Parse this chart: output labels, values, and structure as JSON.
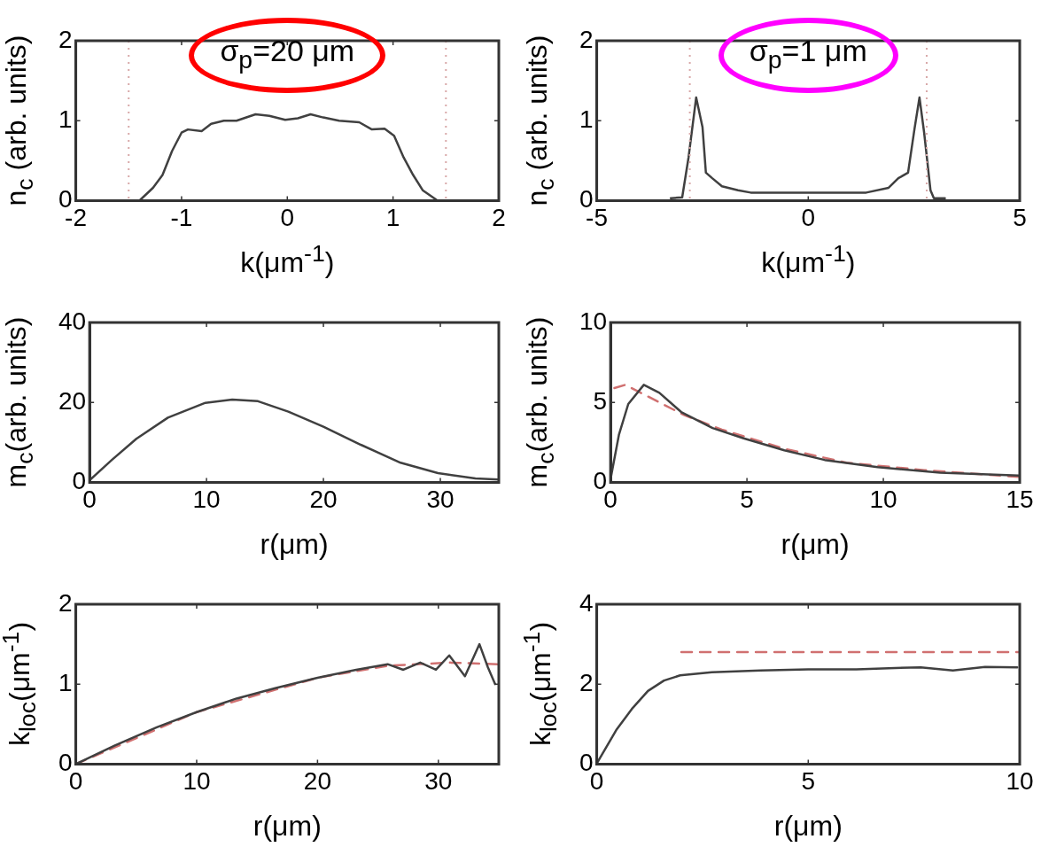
{
  "chart_data": [
    {
      "type": "line",
      "xlabel": "k(μm$^{-1}$)",
      "ylabel": "n$_{c}$ (arb. units)",
      "annotations": [
        "σ$_{p}$=20 μm"
      ],
      "marker": "none",
      "grid": false,
      "legend": false,
      "xlim": [
        -2,
        2
      ],
      "xticks": [
        -2,
        -1,
        0,
        1,
        2
      ],
      "ylim": [
        0,
        2
      ],
      "yticks": [
        0,
        1,
        2
      ],
      "ref_lines": [
        {
          "axis": "x",
          "value": -1.5,
          "color": "#d8a8a8",
          "line_style": "dotted"
        },
        {
          "axis": "x",
          "value": 1.5,
          "color": "#d8a8a8",
          "line_style": "dotted"
        }
      ],
      "series": [
        {
          "color": "#404040",
          "x": [
            -1.39,
            -1.27,
            -1.18,
            -1.09,
            -1.0,
            -0.94,
            -0.81,
            -0.72,
            -0.6,
            -0.48,
            -0.3,
            -0.17,
            -0.02,
            0.1,
            0.22,
            0.34,
            0.49,
            0.68,
            0.8,
            0.92,
            1.01,
            1.1,
            1.19,
            1.28,
            1.41
          ],
          "values": [
            0.01,
            0.16,
            0.32,
            0.62,
            0.85,
            0.89,
            0.87,
            0.96,
            1.0,
            1.0,
            1.08,
            1.06,
            1.01,
            1.03,
            1.08,
            1.04,
            1.0,
            0.98,
            0.89,
            0.9,
            0.81,
            0.54,
            0.32,
            0.13,
            0.01
          ]
        }
      ]
    },
    {
      "type": "line",
      "xlabel": "k(μm$^{-1}$)",
      "ylabel": "n$_{c}$ (arb. units)",
      "annotations": [
        "σ$_{p}$=1 μm"
      ],
      "marker": "none",
      "grid": false,
      "legend": false,
      "xlim": [
        -5,
        5
      ],
      "xticks": [
        -5,
        0,
        5
      ],
      "ylim": [
        0,
        2
      ],
      "yticks": [
        0,
        1,
        2
      ],
      "ref_lines": [
        {
          "axis": "x",
          "value": -2.8,
          "color": "#d8a8a8",
          "line_style": "dotted"
        },
        {
          "axis": "x",
          "value": 2.8,
          "color": "#d8a8a8",
          "line_style": "dotted"
        }
      ],
      "series": [
        {
          "color": "#404040",
          "x": [
            -3.25,
            -2.98,
            -2.83,
            -2.65,
            -2.5,
            -2.42,
            -2.27,
            -2.04,
            -1.66,
            -1.36,
            0,
            1.37,
            1.9,
            2.13,
            2.36,
            2.51,
            2.63,
            2.74,
            2.89,
            2.97,
            3.23
          ],
          "values": [
            0.03,
            0.04,
            0.54,
            1.29,
            0.92,
            0.35,
            0.28,
            0.18,
            0.13,
            0.1,
            0.1,
            0.1,
            0.16,
            0.28,
            0.35,
            0.89,
            1.29,
            0.85,
            0.13,
            0.03,
            0.03
          ]
        }
      ]
    },
    {
      "type": "line",
      "xlabel": "r(μm)",
      "ylabel": "m$_{c}$(arb. units)",
      "marker": "none",
      "grid": false,
      "legend": false,
      "xlim": [
        0,
        35
      ],
      "xticks": [
        0,
        10,
        20,
        30
      ],
      "ylim": [
        0,
        40
      ],
      "yticks": [
        0,
        20,
        40
      ],
      "series": [
        {
          "color": "#404040",
          "x": [
            0,
            1.9,
            4,
            6.7,
            9.9,
            12.2,
            14.4,
            17,
            20,
            23.2,
            26.6,
            29.8,
            33,
            35
          ],
          "values": [
            0.5,
            5.6,
            10.9,
            16.2,
            19.9,
            20.7,
            20.3,
            17.7,
            13.9,
            9.4,
            4.9,
            2.3,
            1,
            0.7
          ]
        }
      ]
    },
    {
      "type": "line",
      "xlabel": "r(μm)",
      "ylabel": "m$_{c}$(arb. units)",
      "marker": "none",
      "grid": false,
      "legend": false,
      "xlim": [
        0,
        15
      ],
      "xticks": [
        0,
        5,
        10,
        15
      ],
      "ylim": [
        0,
        10
      ],
      "yticks": [
        0,
        5,
        10
      ],
      "series": [
        {
          "color": "#404040",
          "x": [
            0.02,
            0.31,
            0.65,
            1.22,
            1.79,
            2.59,
            3.74,
            4.88,
            6.37,
            7.85,
            9.79,
            12.08,
            14.97
          ],
          "values": [
            0.38,
            3.0,
            4.9,
            6.1,
            5.6,
            4.4,
            3.4,
            2.75,
            2.0,
            1.4,
            0.95,
            0.6,
            0.42
          ]
        },
        {
          "color": "#d07070",
          "line_style": "dashed",
          "x": [
            0.14,
            0.54,
            1.22,
            2.71,
            4.08,
            6.37,
            8.65,
            11.5,
            14.97
          ],
          "values": [
            5.9,
            6.1,
            5.5,
            4.2,
            3.3,
            2.1,
            1.23,
            0.76,
            0.34
          ]
        }
      ]
    },
    {
      "type": "line",
      "xlabel": "r(μm)",
      "ylabel": "k$_{loc}$(μm$^{-1}$)",
      "marker": "none",
      "grid": false,
      "legend": false,
      "xlim": [
        0,
        35
      ],
      "xticks": [
        0,
        10,
        20,
        30
      ],
      "ylim": [
        0,
        2
      ],
      "yticks": [
        0,
        1,
        2
      ],
      "series": [
        {
          "color": "#404040",
          "x": [
            0,
            3.2,
            6.7,
            10,
            13.3,
            16.5,
            20,
            23.2,
            25.8,
            27.1,
            28.5,
            29.8,
            30.9,
            32.2,
            33.4,
            34.1,
            34.7
          ],
          "values": [
            0,
            0.23,
            0.46,
            0.65,
            0.82,
            0.95,
            1.08,
            1.18,
            1.25,
            1.18,
            1.27,
            1.18,
            1.36,
            1.1,
            1.5,
            1.21,
            1.0
          ]
        },
        {
          "color": "#d07070",
          "line_style": "dashed",
          "x": [
            0,
            10,
            20,
            25.8,
            30.9,
            34.9
          ],
          "values": [
            0,
            0.65,
            1.08,
            1.23,
            1.27,
            1.25
          ]
        }
      ]
    },
    {
      "type": "line",
      "xlabel": "r(μm)",
      "ylabel": "k$_{loc}$(μm$^{-1}$)",
      "marker": "none",
      "grid": false,
      "legend": false,
      "xlim": [
        0,
        10
      ],
      "xticks": [
        0,
        5,
        10
      ],
      "ylim": [
        0,
        4
      ],
      "yticks": [
        0,
        2,
        4
      ],
      "series": [
        {
          "color": "#404040",
          "x": [
            0.02,
            0.46,
            0.83,
            1.21,
            1.59,
            1.97,
            2.72,
            3.87,
            5,
            6.14,
            6.9,
            7.66,
            8.42,
            9.18,
            9.94
          ],
          "values": [
            0.05,
            0.85,
            1.38,
            1.83,
            2.09,
            2.22,
            2.3,
            2.34,
            2.37,
            2.37,
            2.4,
            2.42,
            2.34,
            2.43,
            2.42
          ]
        },
        {
          "color": "#d07070",
          "line_style": "dashed",
          "x": [
            2,
            10
          ],
          "values": [
            2.8,
            2.8
          ]
        }
      ]
    }
  ]
}
